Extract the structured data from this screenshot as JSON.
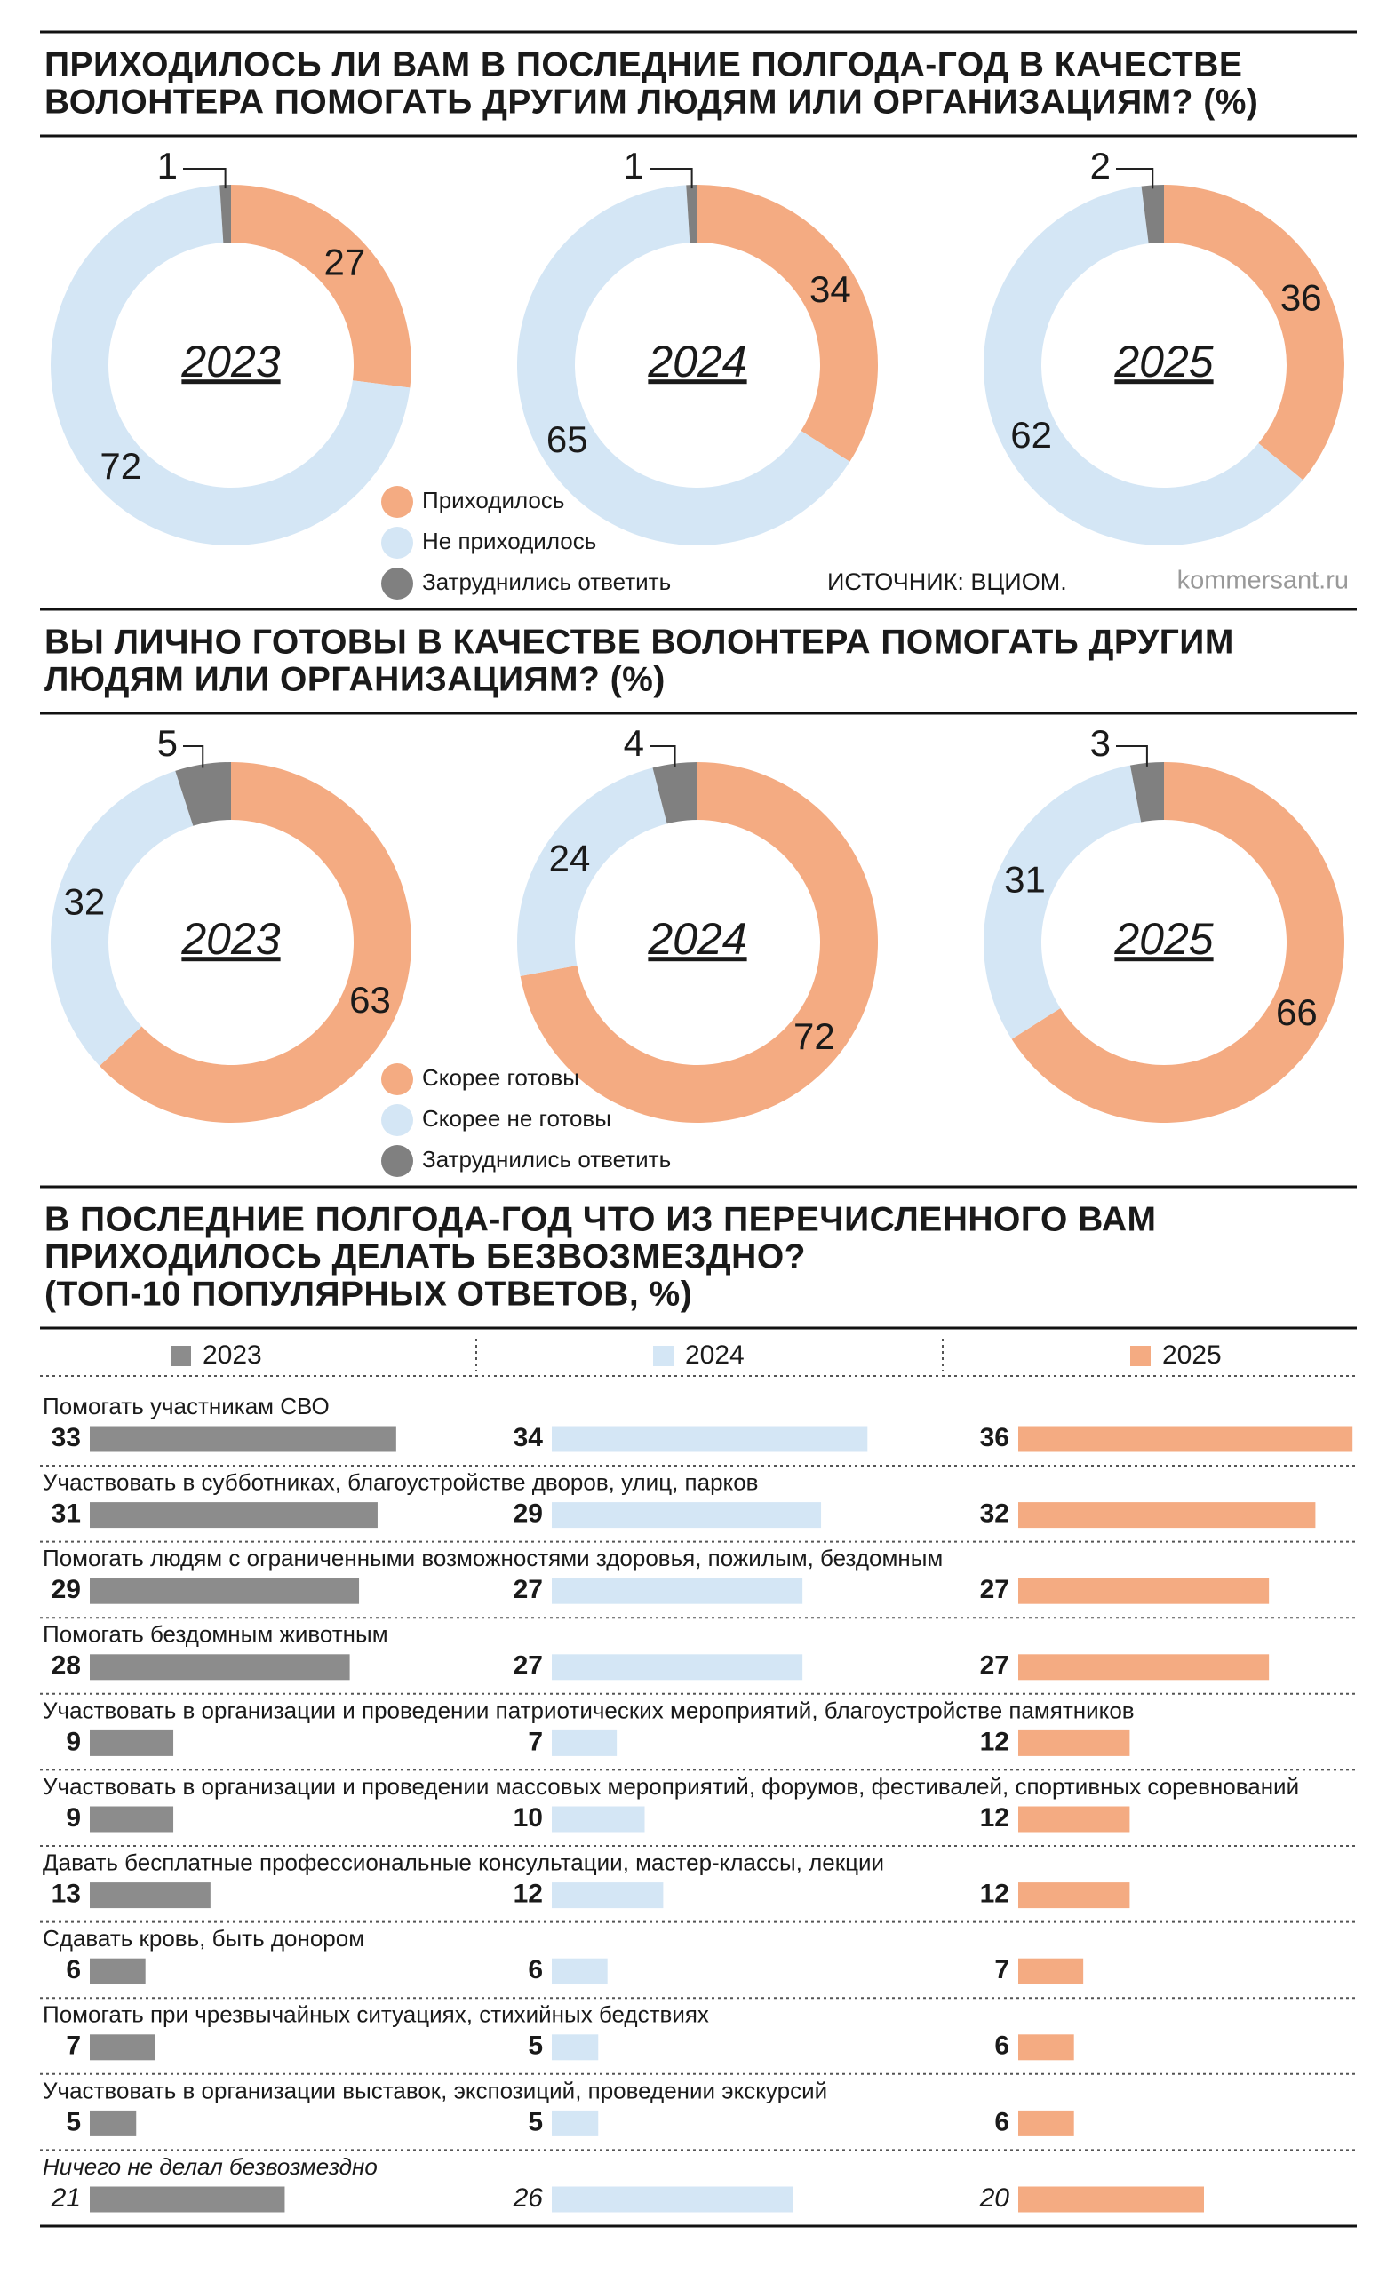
{
  "chart_data": [
    {
      "type": "donut",
      "title": [
        "ПРИХОДИЛОСЬ ЛИ ВАМ В ПОСЛЕДНИЕ ПОЛГОДА-ГОД В КАЧЕСТВЕ",
        "ВОЛОНТЕРА ПОМОГАТЬ ДРУГИМ ЛЮДЯМ ИЛИ ОРГАНИЗАЦИЯМ? (%)"
      ],
      "categories": [
        "Приходилось",
        "Не приходилось",
        "Затруднились ответить"
      ],
      "colors": [
        "#f4ab82",
        "#d4e6f5",
        "#808080"
      ],
      "pies": [
        {
          "name": "2023",
          "values": [
            27,
            72,
            1
          ]
        },
        {
          "name": "2024",
          "values": [
            34,
            65,
            1
          ]
        },
        {
          "name": "2025",
          "values": [
            36,
            62,
            2
          ]
        }
      ],
      "source": "ИСТОЧНИК: ВЦИОМ.",
      "credit": "kommersant.ru"
    },
    {
      "type": "donut",
      "title": [
        "ВЫ ЛИЧНО ГОТОВЫ В КАЧЕСТВЕ ВОЛОНТЕРА ПОМОГАТЬ ДРУГИМ",
        "ЛЮДЯМ ИЛИ ОРГАНИЗАЦИЯМ? (%)"
      ],
      "categories": [
        "Скорее готовы",
        "Скорее не готовы",
        "Затруднились ответить"
      ],
      "colors": [
        "#f4ab82",
        "#d4e6f5",
        "#808080"
      ],
      "pies": [
        {
          "name": "2023",
          "values": [
            63,
            32,
            5
          ]
        },
        {
          "name": "2024",
          "values": [
            72,
            24,
            4
          ]
        },
        {
          "name": "2025",
          "values": [
            66,
            31,
            3
          ]
        }
      ]
    },
    {
      "type": "bar",
      "title": [
        "В ПОСЛЕДНИЕ ПОЛГОДА-ГОД ЧТО ИЗ ПЕРЕЧИСЛЕННОГО ВАМ",
        "ПРИХОДИЛОСЬ ДЕЛАТЬ БЕЗВОЗМЕЗДНО?",
        "(ТОП-10 ПОПУЛЯРНЫХ ОТВЕТОВ, %)"
      ],
      "categories": [
        "Помогать участникам СВО",
        "Участвовать в субботниках, благоустройстве дворов, улиц, парков",
        "Помогать людям с ограниченными возможностями здоровья, пожилым, бездомным",
        "Помогать бездомным животным",
        "Участвовать в организации и проведении патриотических мероприятий, благоустройстве памятников",
        "Участвовать в организации и проведении массовых мероприятий, форумов, фестивалей, спортивных соревнований",
        "Давать бесплатные профессиональные консультации, мастер-классы, лекции",
        "Сдавать кровь, быть донором",
        "Помогать при чрезвычайных ситуациях, стихийных бедствиях",
        "Участвовать в организации выставок, экспозиций, проведении экскурсий",
        "Ничего не делал безвозмездно"
      ],
      "series": [
        {
          "name": "2023",
          "color": "#8c8c8c",
          "values": [
            33,
            31,
            29,
            28,
            9,
            9,
            13,
            6,
            7,
            5,
            21
          ]
        },
        {
          "name": "2024",
          "color": "#d4e6f5",
          "values": [
            34,
            29,
            27,
            27,
            7,
            10,
            12,
            6,
            5,
            5,
            26
          ]
        },
        {
          "name": "2025",
          "color": "#f4ab82",
          "values": [
            36,
            32,
            27,
            27,
            12,
            12,
            12,
            7,
            6,
            6,
            20
          ]
        }
      ]
    }
  ]
}
